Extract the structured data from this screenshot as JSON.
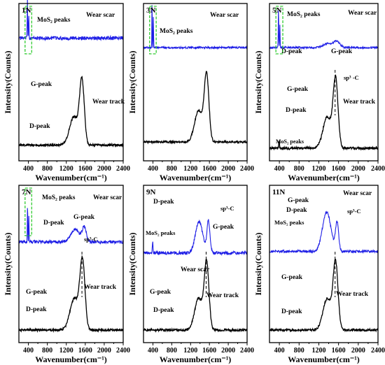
{
  "figure": {
    "xlabel": "Wavenumber(cm⁻¹)",
    "ylabel": "Intensity(Counts)"
  },
  "colors": {
    "scar": "#1f1fe6",
    "track": "#000000",
    "highlight": "#33cc33",
    "axis": "#000000"
  },
  "chart_data": [
    {
      "type": "line",
      "panel": "1N",
      "x_ticks": [
        400,
        800,
        1200,
        1600,
        2000,
        2400
      ],
      "xlim": [
        200,
        2400
      ],
      "xlabel": "Wavenumber(cm⁻¹)",
      "ylabel": "Intensity(Counts)",
      "series": [
        {
          "name": "Wear scar",
          "color": "#1f1fe6",
          "level": 0.78,
          "noise": 0.012,
          "peaks": [
            {
              "x": 380,
              "h": 0.26,
              "w": 7
            },
            {
              "x": 408,
              "h": 0.16,
              "w": 7
            }
          ]
        },
        {
          "name": "Wear track",
          "color": "#000000",
          "level": 0.1,
          "noise": 0.007,
          "peaks": [
            {
              "x": 1530,
              "h": 0.4,
              "w": 70
            },
            {
              "x": 1360,
              "h": 0.18,
              "w": 130
            }
          ]
        }
      ],
      "annotations": [
        {
          "text": "MoS₂ peaks",
          "kind": "label"
        },
        {
          "text": "Wear scar",
          "kind": "label"
        },
        {
          "text": "G-peak",
          "kind": "label"
        },
        {
          "text": "Wear track",
          "kind": "label"
        },
        {
          "text": "D-peak",
          "kind": "label"
        }
      ]
    },
    {
      "type": "line",
      "panel": "3N",
      "x_ticks": [
        400,
        800,
        1200,
        1600,
        2000,
        2400
      ],
      "xlim": [
        200,
        2400
      ],
      "xlabel": "Wavenumber(cm⁻¹)",
      "ylabel": "Intensity(Counts)",
      "series": [
        {
          "name": "Wear scar",
          "color": "#1f1fe6",
          "level": 0.72,
          "noise": 0.006,
          "peaks": [
            {
              "x": 382,
              "h": 0.3,
              "w": 6
            },
            {
              "x": 410,
              "h": 0.2,
              "w": 6
            }
          ]
        },
        {
          "name": "Wear track",
          "color": "#000000",
          "level": 0.12,
          "noise": 0.006,
          "peaks": [
            {
              "x": 1540,
              "h": 0.42,
              "w": 70
            },
            {
              "x": 1370,
              "h": 0.2,
              "w": 120
            }
          ]
        }
      ],
      "annotations": [
        {
          "text": "MoS₂ peaks",
          "kind": "label"
        },
        {
          "text": "Wear scar",
          "kind": "label"
        }
      ]
    },
    {
      "type": "line",
      "panel": "5N",
      "x_ticks": [
        400,
        800,
        1200,
        1600,
        2000,
        2400
      ],
      "xlim": [
        200,
        2400
      ],
      "xlabel": "Wavenumber(cm⁻¹)",
      "ylabel": "Intensity(Counts)",
      "series": [
        {
          "name": "Wear scar",
          "color": "#1f1fe6",
          "level": 0.72,
          "noise": 0.006,
          "peaks": [
            {
              "x": 382,
              "h": 0.25,
              "w": 7
            },
            {
              "x": 410,
              "h": 0.14,
              "w": 7
            },
            {
              "x": 1560,
              "h": 0.04,
              "w": 90
            },
            {
              "x": 1370,
              "h": 0.025,
              "w": 120
            }
          ]
        },
        {
          "name": "Wear track",
          "color": "#000000",
          "level": 0.08,
          "noise": 0.008,
          "peaks": [
            {
              "x": 1540,
              "h": 0.43,
              "w": 70
            },
            {
              "x": 1370,
              "h": 0.2,
              "w": 120
            },
            {
              "x": 395,
              "h": 0.05,
              "w": 10
            }
          ]
        }
      ],
      "annotations": [
        {
          "text": "MoS₂ peaks",
          "kind": "label"
        },
        {
          "text": "Wear scar",
          "kind": "label"
        },
        {
          "text": "D-peak",
          "kind": "label"
        },
        {
          "text": "G-peak",
          "kind": "label"
        },
        {
          "text": "sp³ -C",
          "kind": "label"
        },
        {
          "text": "G-peak",
          "kind": "label"
        },
        {
          "text": "Wear track",
          "kind": "label"
        },
        {
          "text": "D-peak",
          "kind": "label"
        },
        {
          "text": "MoS₂ peaks",
          "kind": "label"
        }
      ]
    },
    {
      "type": "line",
      "panel": "7N",
      "x_ticks": [
        400,
        800,
        1200,
        1600,
        2000,
        2400
      ],
      "xlim": [
        200,
        2400
      ],
      "xlabel": "Wavenumber(cm⁻¹)",
      "ylabel": "Intensity(Counts)",
      "series": [
        {
          "name": "Wear scar",
          "color": "#1f1fe6",
          "level": 0.64,
          "noise": 0.01,
          "peaks": [
            {
              "x": 382,
              "h": 0.24,
              "w": 7
            },
            {
              "x": 410,
              "h": 0.16,
              "w": 7
            },
            {
              "x": 1390,
              "h": 0.08,
              "w": 130
            },
            {
              "x": 1580,
              "h": 0.09,
              "w": 60
            }
          ]
        },
        {
          "name": "Wear track",
          "color": "#000000",
          "level": 0.08,
          "noise": 0.007,
          "peaks": [
            {
              "x": 1540,
              "h": 0.43,
              "w": 75
            },
            {
              "x": 1370,
              "h": 0.2,
              "w": 130
            }
          ]
        }
      ],
      "annotations": [
        {
          "text": "MoS₂ peaks",
          "kind": "label"
        },
        {
          "text": "Wear scar",
          "kind": "label"
        },
        {
          "text": "D-peak",
          "kind": "label"
        },
        {
          "text": "G-peak",
          "kind": "label"
        },
        {
          "text": "sp³-C",
          "kind": "label"
        },
        {
          "text": "G-peak",
          "kind": "label"
        },
        {
          "text": "Wear track",
          "kind": "label"
        },
        {
          "text": "D-peak",
          "kind": "label"
        }
      ]
    },
    {
      "type": "line",
      "panel": "9N",
      "x_ticks": [
        400,
        800,
        1200,
        1600,
        2000,
        2400
      ],
      "xlim": [
        200,
        2400
      ],
      "xlabel": "Wavenumber(cm⁻¹)",
      "ylabel": "Intensity(Counts)",
      "series": [
        {
          "name": "Wear scar",
          "color": "#1f1fe6",
          "level": 0.57,
          "noise": 0.01,
          "peaks": [
            {
              "x": 395,
              "h": 0.07,
              "w": 10
            },
            {
              "x": 1380,
              "h": 0.2,
              "w": 110
            },
            {
              "x": 1580,
              "h": 0.2,
              "w": 45
            }
          ]
        },
        {
          "name": "Wear track",
          "color": "#000000",
          "level": 0.08,
          "noise": 0.007,
          "peaks": [
            {
              "x": 1540,
              "h": 0.42,
              "w": 70
            },
            {
              "x": 1370,
              "h": 0.2,
              "w": 120
            }
          ]
        }
      ],
      "annotations": [
        {
          "text": "D-peak",
          "kind": "label"
        },
        {
          "text": "sp³-C",
          "kind": "label"
        },
        {
          "text": "G-peak",
          "kind": "label"
        },
        {
          "text": "MoS₂ peaks",
          "kind": "label"
        },
        {
          "text": "Wear scar",
          "kind": "label"
        },
        {
          "text": "G-peak",
          "kind": "label"
        },
        {
          "text": "Wear track",
          "kind": "label"
        },
        {
          "text": "D-peak",
          "kind": "label"
        }
      ]
    },
    {
      "type": "line",
      "panel": "11N",
      "x_ticks": [
        400,
        800,
        1200,
        1600,
        2000,
        2400
      ],
      "xlim": [
        200,
        2400
      ],
      "xlabel": "Wavenumber(cm⁻¹)",
      "ylabel": "Intensity(Counts)",
      "series": [
        {
          "name": "Wear scar",
          "color": "#1f1fe6",
          "level": 0.58,
          "noise": 0.008,
          "peaks": [
            {
              "x": 1360,
              "h": 0.25,
              "w": 120
            },
            {
              "x": 1570,
              "h": 0.18,
              "w": 45
            }
          ]
        },
        {
          "name": "Wear track",
          "color": "#000000",
          "level": 0.08,
          "noise": 0.007,
          "peaks": [
            {
              "x": 1540,
              "h": 0.42,
              "w": 70
            },
            {
              "x": 1370,
              "h": 0.2,
              "w": 120
            }
          ]
        }
      ],
      "annotations": [
        {
          "text": "G-peak",
          "kind": "label"
        },
        {
          "text": "Wear scar",
          "kind": "label"
        },
        {
          "text": "D-peak",
          "kind": "label"
        },
        {
          "text": "sp³-C",
          "kind": "label"
        },
        {
          "text": "MoS₂ peaks",
          "kind": "label"
        },
        {
          "text": "G-peak",
          "kind": "label"
        },
        {
          "text": "Wear track",
          "kind": "label"
        },
        {
          "text": "D-peak",
          "kind": "label"
        }
      ]
    }
  ]
}
